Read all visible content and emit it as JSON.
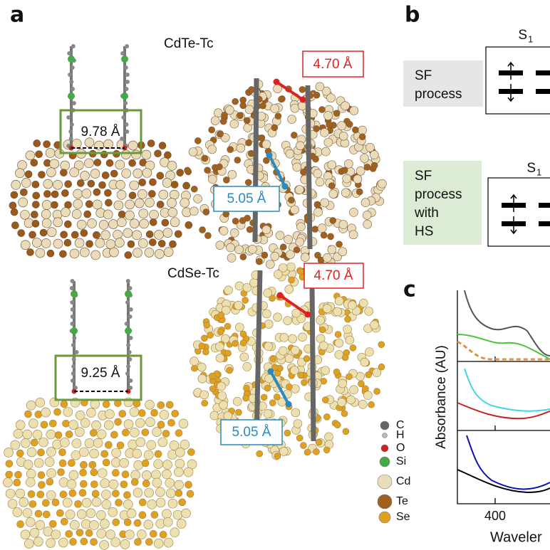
{
  "panel_a": {
    "label": "a",
    "top": {
      "title": "CdTe-Tc",
      "distance": "9.78 Å",
      "callout_red": "4.70 Å",
      "callout_blue": "5.05 Å"
    },
    "bottom": {
      "title": "CdSe-Tc",
      "distance": "9.25 Å",
      "callout_red": "4.70 Å",
      "callout_blue": "5.05 Å"
    },
    "legend": [
      "C",
      "H",
      "O",
      "Si",
      "Cd",
      "Te",
      "Se"
    ]
  },
  "panel_b": {
    "label": "b",
    "rows": [
      {
        "label": [
          "SF",
          "process"
        ],
        "state": "S",
        "state_sub": "1"
      },
      {
        "label": [
          "SF",
          "process",
          "with",
          "HS"
        ],
        "state": "S",
        "state_sub": "1"
      }
    ]
  },
  "panel_c": {
    "label": "c",
    "y_label": "Absorbance (AU)",
    "x_tick": "400",
    "x_label": "Waveler"
  }
}
